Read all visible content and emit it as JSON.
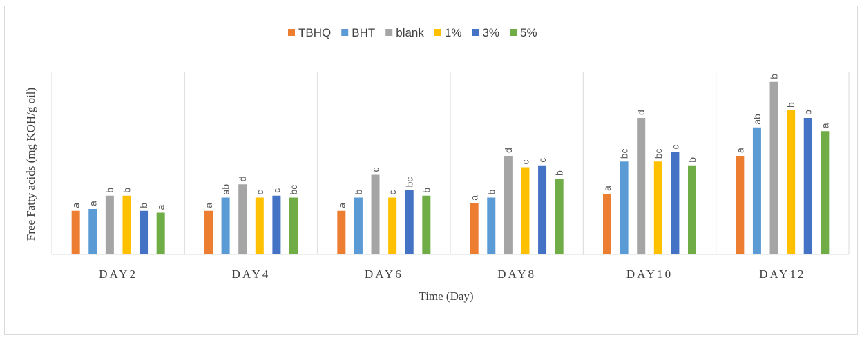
{
  "chart_data": {
    "type": "bar",
    "title": "",
    "xlabel": "Time (Day)",
    "ylabel": "Free Fatty acids (mg KOH/g oil)",
    "legend_position": "top",
    "ylim": [
      0,
      100
    ],
    "grid": false,
    "categories": [
      "DAY2",
      "DAY4",
      "DAY6",
      "DAY8",
      "DAY10",
      "DAY12"
    ],
    "series": [
      {
        "name": "TBHQ",
        "color": "#ED7D31",
        "values": [
          23,
          23,
          23,
          27,
          32,
          52
        ],
        "labels": [
          "a",
          "a",
          "a",
          "a",
          "a",
          "a"
        ]
      },
      {
        "name": "BHT",
        "color": "#5B9BD5",
        "values": [
          24,
          30,
          30,
          30,
          49,
          67
        ],
        "labels": [
          "a",
          "ab",
          "b",
          "b",
          "bc",
          "ab"
        ]
      },
      {
        "name": "blank",
        "color": "#A5A5A5",
        "values": [
          31,
          37,
          42,
          52,
          72,
          91
        ],
        "labels": [
          "b",
          "d",
          "c",
          "d",
          "d",
          "b"
        ]
      },
      {
        "name": "1%",
        "color": "#FFC000",
        "values": [
          31,
          30,
          30,
          46,
          49,
          76
        ],
        "labels": [
          "b",
          "c",
          "c",
          "c",
          "bc",
          "b"
        ]
      },
      {
        "name": "3%",
        "color": "#4472C4",
        "values": [
          23,
          31,
          34,
          47,
          54,
          72
        ],
        "labels": [
          "b",
          "c",
          "bc",
          "c",
          "c",
          "b"
        ]
      },
      {
        "name": "5%",
        "color": "#70AD47",
        "values": [
          22,
          30,
          31,
          40,
          47,
          65
        ],
        "labels": [
          "a",
          "bc",
          "b",
          "b",
          "b",
          "a"
        ]
      }
    ]
  }
}
